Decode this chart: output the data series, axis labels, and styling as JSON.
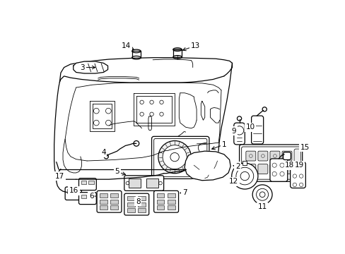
{
  "background_color": "#ffffff",
  "line_color": "#000000",
  "label_fontsize": 7.5,
  "dash_lw": 0.55,
  "main_lw": 0.9,
  "thin_lw": 0.6
}
